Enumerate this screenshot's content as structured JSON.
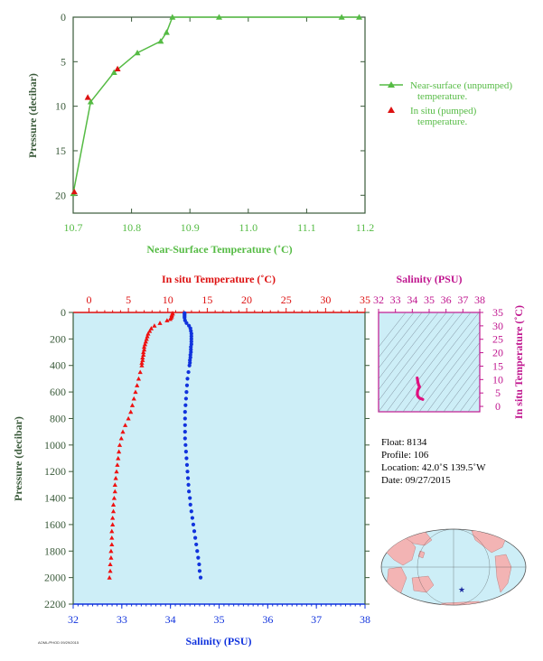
{
  "chart_data": [
    {
      "type": "line",
      "xlabel": "Near-Surface Temperature (˚C)",
      "ylabel": "Pressure (decibar)",
      "xlim": [
        10.7,
        11.2
      ],
      "ylim": [
        22,
        0
      ],
      "x_ticks": [
        "10.7",
        "10.8",
        "10.9",
        "11.0",
        "11.1",
        "11.2"
      ],
      "y_ticks": [
        "0",
        "5",
        "10",
        "15",
        "20"
      ],
      "legend_position": "right",
      "series": [
        {
          "name": "Near-surface (unpumped) temperature.",
          "color": "#55bb44",
          "marker": "triangle",
          "x": [
            11.19,
            11.16,
            10.95,
            10.87,
            10.86,
            10.85,
            10.81,
            10.77,
            10.73,
            10.7
          ],
          "y": [
            0.0,
            0.0,
            -0.0,
            0.0,
            1.7,
            2.7,
            4.0,
            6.2,
            9.5,
            19.8
          ]
        },
        {
          "name": "In situ (pumped) temperature.",
          "color": "#dd1111",
          "marker": "triangle",
          "x": [
            10.725,
            10.776,
            10.702
          ],
          "y": [
            9.0,
            5.8,
            19.6
          ]
        }
      ]
    },
    {
      "type": "scatter",
      "x_top_label": "In situ Temperature (˚C)",
      "x_bottom_label": "Salinity (PSU)",
      "ylabel": "Pressure (decibar)",
      "temperature_lim": [
        -2,
        35
      ],
      "salinity_lim": [
        32,
        38
      ],
      "ylim": [
        2200,
        0
      ],
      "temperature_ticks": [
        "0",
        "5",
        "10",
        "15",
        "20",
        "25",
        "30",
        "35"
      ],
      "salinity_ticks": [
        "32",
        "33",
        "34",
        "35",
        "36",
        "37",
        "38"
      ],
      "y_ticks": [
        "0",
        "200",
        "400",
        "600",
        "800",
        "1000",
        "1200",
        "1400",
        "1600",
        "1800",
        "2000",
        "2200"
      ],
      "temperature_series": {
        "color": "#ee1111",
        "pressure": [
          5,
          10,
          20,
          30,
          40,
          50,
          60,
          80,
          100,
          120,
          140,
          160,
          180,
          200,
          220,
          240,
          260,
          280,
          300,
          320,
          340,
          360,
          380,
          400,
          450,
          500,
          550,
          600,
          650,
          700,
          750,
          800,
          850,
          900,
          950,
          1000,
          1050,
          1100,
          1150,
          1200,
          1250,
          1300,
          1350,
          1400,
          1450,
          1500,
          1550,
          1600,
          1650,
          1700,
          1750,
          1800,
          1850,
          1900,
          1950,
          2000
        ],
        "values": [
          10.6,
          10.6,
          10.5,
          10.5,
          10.4,
          10.3,
          9.9,
          9.0,
          8.3,
          7.9,
          7.7,
          7.5,
          7.4,
          7.3,
          7.2,
          7.1,
          7.0,
          7.0,
          6.9,
          6.9,
          6.8,
          6.8,
          6.7,
          6.7,
          6.5,
          6.3,
          6.1,
          5.9,
          5.7,
          5.5,
          5.3,
          5.0,
          4.6,
          4.3,
          4.1,
          3.9,
          3.8,
          3.7,
          3.6,
          3.5,
          3.4,
          3.3,
          3.3,
          3.2,
          3.1,
          3.1,
          3.0,
          3.0,
          2.9,
          2.9,
          2.9,
          2.8,
          2.8,
          2.7,
          2.7,
          2.6
        ]
      },
      "salinity_series": {
        "color": "#1133dd",
        "pressure": [
          5,
          10,
          20,
          30,
          40,
          60,
          80,
          100,
          120,
          140,
          160,
          180,
          200,
          220,
          240,
          260,
          280,
          300,
          320,
          340,
          360,
          380,
          400,
          450,
          500,
          550,
          600,
          650,
          700,
          750,
          800,
          850,
          900,
          950,
          1000,
          1050,
          1100,
          1150,
          1200,
          1250,
          1300,
          1350,
          1400,
          1450,
          1500,
          1550,
          1600,
          1650,
          1700,
          1750,
          1800,
          1850,
          1900,
          1950,
          2000
        ],
        "values": [
          34.29,
          34.29,
          34.29,
          34.29,
          34.29,
          34.3,
          34.33,
          34.38,
          34.41,
          34.42,
          34.43,
          34.43,
          34.43,
          34.43,
          34.43,
          34.42,
          34.42,
          34.42,
          34.41,
          34.41,
          34.4,
          34.4,
          34.39,
          34.37,
          34.35,
          34.34,
          34.33,
          34.32,
          34.31,
          34.3,
          34.3,
          34.3,
          34.3,
          34.3,
          34.31,
          34.32,
          34.33,
          34.34,
          34.35,
          34.36,
          34.37,
          34.38,
          34.4,
          34.41,
          34.43,
          34.45,
          34.47,
          34.49,
          34.51,
          34.53,
          34.55,
          34.57,
          34.59,
          34.6,
          34.62
        ]
      }
    },
    {
      "type": "scatter",
      "xlabel": "Salinity (PSU)",
      "ylabel": "In situ Temperature (˚C)",
      "xlim": [
        32,
        38
      ],
      "ylim": [
        -2,
        35
      ],
      "x_ticks": [
        "32",
        "33",
        "34",
        "35",
        "36",
        "37",
        "38"
      ],
      "y_ticks": [
        "0",
        "5",
        "10",
        "15",
        "20",
        "25",
        "30",
        "35"
      ],
      "series": [
        {
          "color": "#e0117f",
          "salinity": [
            34.29,
            34.3,
            34.33,
            34.38,
            34.42,
            34.43,
            34.41,
            34.39,
            34.35,
            34.32,
            34.3,
            34.31,
            34.34,
            34.38,
            34.43,
            34.49,
            34.55,
            34.62
          ],
          "temperature": [
            10.6,
            10.3,
            9.0,
            7.9,
            7.5,
            7.3,
            7.0,
            6.8,
            6.3,
            5.9,
            5.0,
            4.1,
            3.7,
            3.4,
            3.1,
            2.9,
            2.8,
            2.6
          ]
        }
      ]
    }
  ],
  "float_info": {
    "float": "Float:  8134",
    "profile": "Profile:  106",
    "location": "Location:  42.0˚S  139.5˚W",
    "date": "Date:  09/27/2015"
  },
  "map": {
    "land_color": "#f3b4b4",
    "ocean_color": "#cdeef7",
    "marker_color": "#1a2aa0",
    "marker": "star"
  },
  "colors": {
    "axis_dark": "#3a5a3a",
    "green": "#55bb44",
    "red": "#dd1111",
    "blue": "#1133dd",
    "magenta": "#c0168f",
    "panel_bg": "#cdeef7"
  },
  "footer_stamp": "AOML/PHOD 09/29/2015"
}
